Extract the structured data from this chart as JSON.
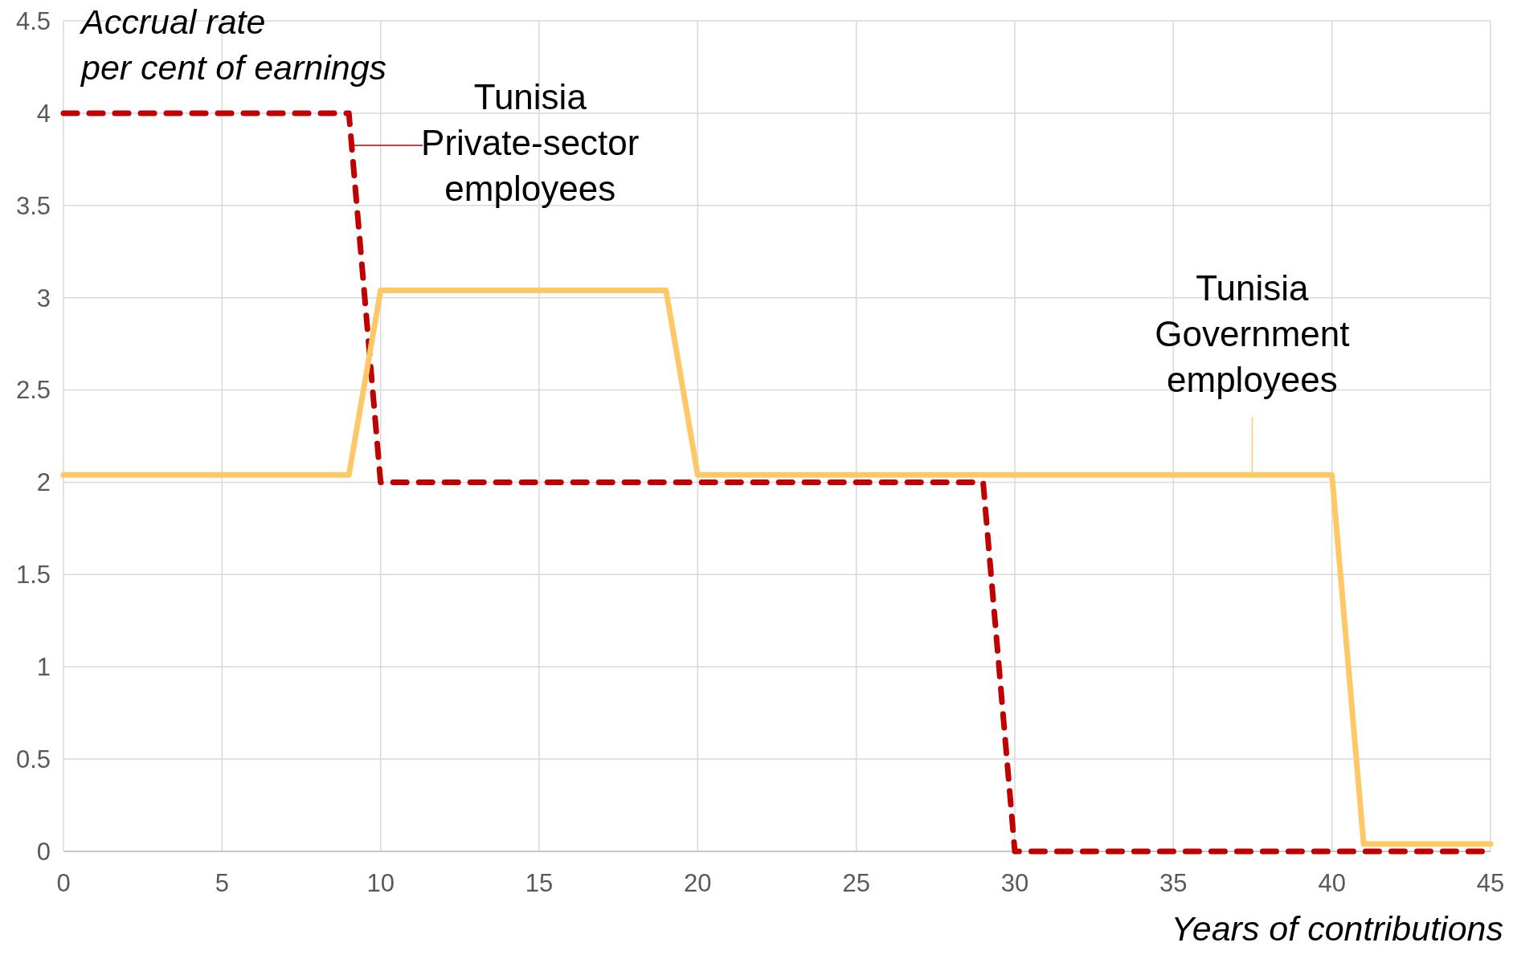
{
  "chart_data": {
    "type": "line",
    "xlabel": "Years of contributions",
    "ylabel": "Accrual rate\nper cent of earnings",
    "xlim": [
      0,
      45
    ],
    "xticks": [
      0,
      5,
      10,
      15,
      20,
      25,
      30,
      35,
      40,
      45
    ],
    "ylim": [
      0,
      4.5
    ],
    "yticks": [
      0,
      0.5,
      1,
      1.5,
      2,
      2.5,
      3,
      3.5,
      4,
      4.5
    ],
    "grid": true,
    "series": [
      {
        "name": "Tunisia Private-sector employees",
        "color": "#c00000",
        "line_style": "dashed",
        "x": [
          0,
          9,
          10,
          29,
          30,
          45
        ],
        "values": [
          4,
          4,
          2,
          2,
          0,
          0
        ]
      },
      {
        "name": "Tunisia Government employees",
        "color": "#ffc866",
        "line_style": "solid",
        "x": [
          0,
          9,
          10,
          19,
          20,
          40,
          41,
          45
        ],
        "values": [
          2.04,
          2.04,
          3.04,
          3.04,
          2.04,
          2.04,
          0.04,
          0.04
        ]
      }
    ]
  }
}
